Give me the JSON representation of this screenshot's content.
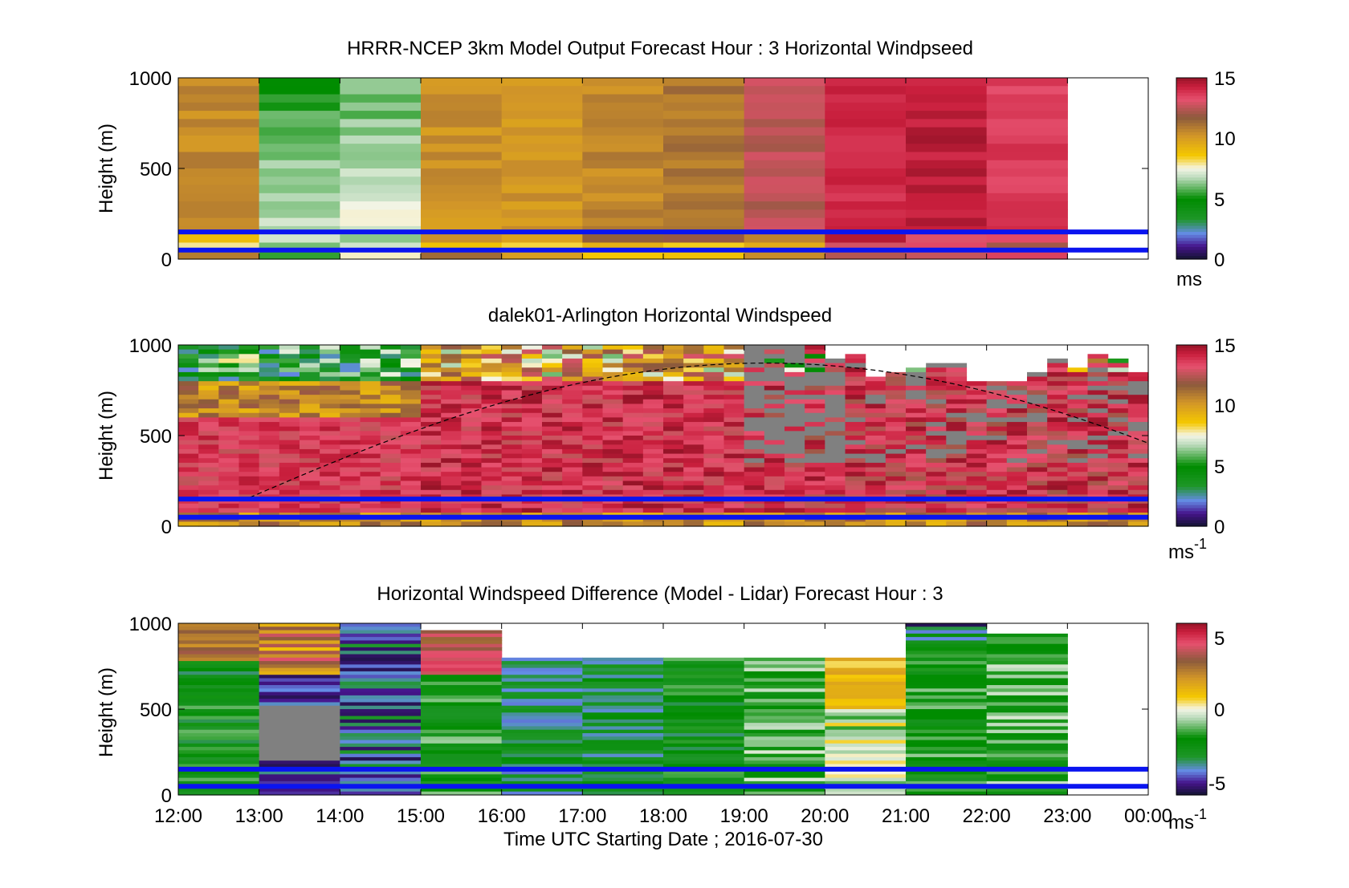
{
  "chart_data": [
    {
      "type": "heatmap",
      "title": "HRRR-NCEP 3km Model Output   Forecast Hour : 3 Horizontal Windpseed",
      "xlabel": "",
      "ylabel": "Height (m)",
      "ylim": [
        0,
        1000
      ],
      "yticks": [
        "0",
        "500",
        "1000"
      ],
      "colorbar": {
        "min": 0,
        "max": 15,
        "ticks": [
          "0",
          "5",
          "10",
          "15"
        ],
        "unit": "ms",
        "unit_sup": ""
      },
      "reference_lines_m": [
        50,
        150
      ],
      "columns": [
        {
          "hour": 12,
          "value": 10.5
        },
        {
          "hour": 13,
          "value": 6.5
        },
        {
          "hour": 14,
          "value": 7.0
        },
        {
          "hour": 15,
          "value": 10.3
        },
        {
          "hour": 16,
          "value": 10.2
        },
        {
          "hour": 17,
          "value": 10.6
        },
        {
          "hour": 18,
          "value": 11.0
        },
        {
          "hour": 19,
          "value": 12.5
        },
        {
          "hour": 20,
          "value": 14.0
        },
        {
          "hour": 21,
          "value": 14.4
        },
        {
          "hour": 22,
          "value": 13.6
        }
      ]
    },
    {
      "type": "heatmap",
      "title": "dalek01-Arlington  Horizontal Windspeed",
      "xlabel": "",
      "ylabel": "Height (m)",
      "ylim": [
        0,
        1000
      ],
      "yticks": [
        "0",
        "500",
        "1000"
      ],
      "colorbar": {
        "min": 0,
        "max": 15,
        "ticks": [
          "0",
          "5",
          "10",
          "15"
        ],
        "unit": "ms",
        "unit_sup": "-1"
      },
      "reference_lines_m": [
        50,
        150
      ],
      "notes": "Dense lidar profile: low-level jet (~13-14 m/s) below 600 m, weaker winds (green/purple) above ~800 m before 15:00; gray = no data above boundary layer after 19:00; dashed curve = boundary-layer height."
    },
    {
      "type": "heatmap",
      "title": "Horizontal Windspeed Difference (Model - Lidar) Forecast Hour : 3",
      "xlabel": "Time UTC  Starting Date ; 2016-07-30",
      "ylabel": "Height (m)",
      "ylim": [
        0,
        1000
      ],
      "yticks": [
        "0",
        "500",
        "1000"
      ],
      "colorbar": {
        "min": -6,
        "max": 6,
        "ticks": [
          "-5",
          "0",
          "5"
        ],
        "unit": "ms",
        "unit_sup": "-1"
      },
      "reference_lines_m": [
        50,
        150
      ],
      "columns": [
        {
          "hour": 12,
          "value": -2.5
        },
        {
          "hour": 13,
          "value": -5.0
        },
        {
          "hour": 14,
          "value": -4.5
        },
        {
          "hour": 15,
          "value": -2.0
        },
        {
          "hour": 16,
          "value": -3.5
        },
        {
          "hour": 17,
          "value": -3.0
        },
        {
          "hour": 18,
          "value": -2.5
        },
        {
          "hour": 19,
          "value": -1.5
        },
        {
          "hour": 20,
          "value": -0.5
        },
        {
          "hour": 21,
          "value": -2.0
        },
        {
          "hour": 22,
          "value": -1.5
        }
      ]
    }
  ],
  "x_axis": {
    "ticks": [
      "12:00",
      "13:00",
      "14:00",
      "15:00",
      "16:00",
      "17:00",
      "18:00",
      "19:00",
      "20:00",
      "21:00",
      "22:00",
      "23:00",
      "00:00"
    ]
  }
}
